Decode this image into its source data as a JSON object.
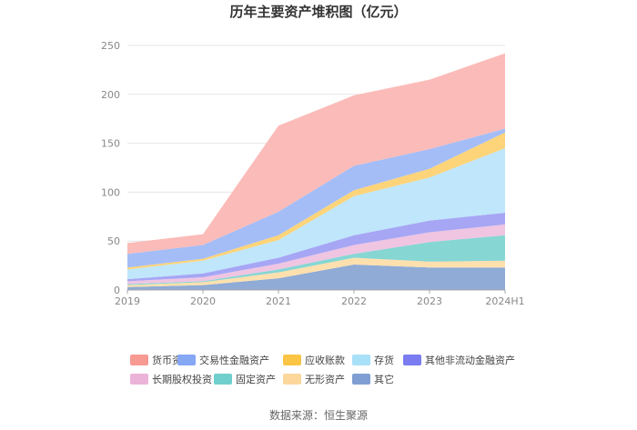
{
  "chart_data": {
    "type": "area",
    "stacked": true,
    "title": "历年主要资产堆积图（亿元）",
    "x": [
      "2019",
      "2020",
      "2021",
      "2022",
      "2023",
      "2024H1"
    ],
    "ylim": [
      0,
      250
    ],
    "yticks": [
      0,
      50,
      100,
      150,
      200,
      250
    ],
    "grid": true,
    "legend_position": "bottom",
    "series": [
      {
        "name": "其它",
        "color": "#8fabd6",
        "values": [
          3,
          5,
          12,
          26,
          23,
          23
        ]
      },
      {
        "name": "无形资产",
        "color": "#fde0ae",
        "values": [
          2,
          3,
          6,
          7,
          6,
          7
        ]
      },
      {
        "name": "固定资产",
        "color": "#86d6d4",
        "values": [
          1,
          1,
          3,
          4,
          20,
          26
        ]
      },
      {
        "name": "长期股权投资",
        "color": "#efc5e2",
        "values": [
          3,
          4,
          6,
          9,
          10,
          11
        ]
      },
      {
        "name": "其他非流动金融资产",
        "color": "#a6a6f5",
        "values": [
          2,
          4,
          6,
          10,
          12,
          12
        ]
      },
      {
        "name": "存货",
        "color": "#bfe6fa",
        "values": [
          10,
          13,
          18,
          40,
          44,
          66
        ]
      },
      {
        "name": "应收账款",
        "color": "#fdd47a",
        "values": [
          2,
          2,
          5,
          6,
          9,
          16
        ]
      },
      {
        "name": "交易性金融资产",
        "color": "#a4bdf7",
        "values": [
          14,
          14,
          24,
          25,
          20,
          4
        ]
      },
      {
        "name": "货币资金",
        "color": "#fbbbb8",
        "values": [
          11,
          11,
          88,
          72,
          71,
          77
        ]
      }
    ],
    "legend_order": [
      "货币资金",
      "交易性金融资产",
      "应收账款",
      "存货",
      "其他非流动金融资产",
      "长期股权投资",
      "固定资产",
      "无形资产",
      "其它"
    ],
    "legend_swatch_colors": {
      "货币资金": "#f69a92",
      "交易性金融资产": "#86a8f4",
      "应收账款": "#fcc444",
      "存货": "#a8e0f8",
      "其他非流动金融资产": "#7b7cef",
      "长期股权投资": "#ecb3d9",
      "固定资产": "#6fcfcd",
      "无形资产": "#fcd79c",
      "其它": "#7f9fd3"
    }
  },
  "source": "数据来源：恒生聚源"
}
